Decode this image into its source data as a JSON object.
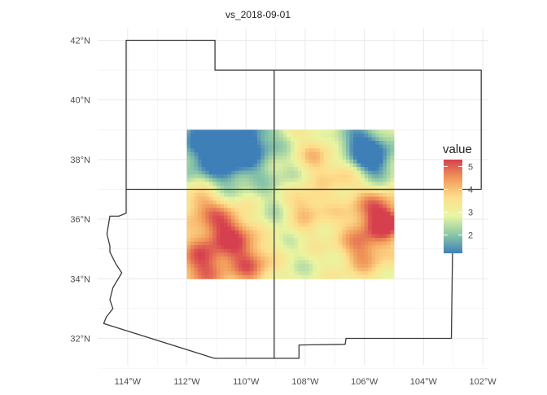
{
  "chart_data": {
    "type": "heatmap",
    "title": "vs_2018-09-01",
    "xlabel": "",
    "ylabel": "",
    "x_ticks": [
      "114°W",
      "112°W",
      "110°W",
      "108°W",
      "106°W",
      "104°W",
      "102°W"
    ],
    "y_ticks": [
      "42°N",
      "40°N",
      "38°N",
      "36°N",
      "34°N",
      "32°N"
    ],
    "lon_range": [
      -115,
      -101.8
    ],
    "lat_range": [
      31.1,
      42.4
    ],
    "grid": true,
    "raster_extent": {
      "lon": [
        -112,
        -105
      ],
      "lat": [
        34,
        39
      ]
    },
    "legend": {
      "title": "value",
      "placement": "right",
      "range": [
        1.2,
        5.3
      ],
      "ticks": [
        "2",
        "3",
        "4",
        "5"
      ],
      "colors": [
        "#3f7fb8",
        "#8cc7a7",
        "#e9f5a1",
        "#fede8c",
        "#f19a5a",
        "#d6404e"
      ]
    },
    "state_labels": []
  }
}
